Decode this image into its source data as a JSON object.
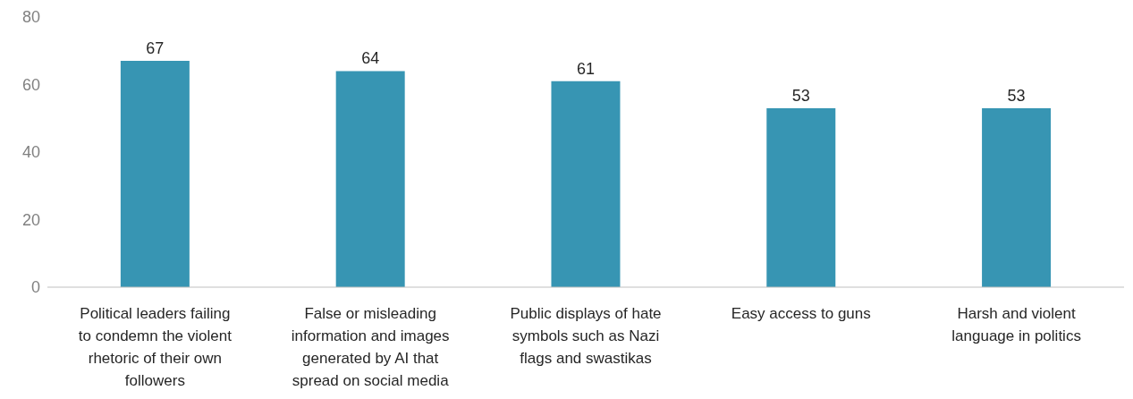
{
  "chart_data": {
    "type": "bar",
    "categories": [
      "Political leaders failing to condemn the violent rhetoric of their own followers",
      "False or misleading information and images generated by AI that spread on social media",
      "Public displays of hate symbols such as Nazi flags and swastikas",
      "Easy access to guns",
      "Harsh and violent language in politics"
    ],
    "values": [
      67,
      64,
      61,
      53,
      53
    ],
    "color": "#3795b3",
    "ylim": [
      0,
      80
    ],
    "yticks": [
      0,
      20,
      40,
      60,
      80
    ],
    "data_labels": true
  }
}
